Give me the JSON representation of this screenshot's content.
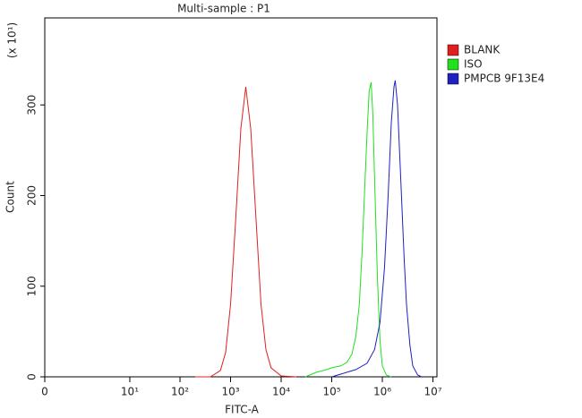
{
  "chart_data": {
    "type": "line",
    "title": "Multi-sample : P1",
    "x_label": "FITC-A",
    "y_label": "Count",
    "y_multiplier": "(x 10¹)",
    "xscale": "biexponential",
    "legend": "right",
    "xlim": [
      0,
      12000000
    ],
    "ylim": [
      0,
      396
    ],
    "xticks": [
      0,
      {
        "value": 10,
        "label": "10¹"
      },
      {
        "value": 100,
        "label": "10²"
      },
      {
        "value": 1000,
        "label": "10³"
      },
      {
        "value": 10000,
        "label": "10⁴"
      },
      {
        "value": 100000,
        "label": "10⁵"
      },
      {
        "value": 1000000,
        "label": "10⁶"
      },
      {
        "value": 10000000,
        "label": "10⁷"
      }
    ],
    "yticks": [
      0,
      100,
      200,
      300
    ],
    "series": [
      {
        "name": "BLANK",
        "color": "#e02020",
        "x": [
          200,
          400,
          630,
          800,
          1000,
          1260,
          1600,
          2000,
          2500,
          3200,
          4000,
          5000,
          6300,
          10000,
          20000
        ],
        "values": [
          0,
          0,
          7,
          27,
          80,
          173,
          274,
          320,
          274,
          173,
          80,
          30,
          10,
          1,
          0
        ]
      },
      {
        "name": "ISO",
        "color": "#20e020",
        "x": [
          30000,
          50000,
          80000,
          100000,
          150000,
          200000,
          250000,
          300000,
          350000,
          400000,
          450000,
          500000,
          550000,
          600000,
          650000,
          700000,
          800000,
          900000,
          1000000,
          1200000,
          1500000
        ],
        "values": [
          0,
          5,
          8,
          10,
          12,
          16,
          25,
          45,
          80,
          140,
          210,
          270,
          315,
          325,
          290,
          220,
          110,
          40,
          12,
          2,
          0
        ]
      },
      {
        "name": "PMPCB 9F13E4",
        "color": "#2020c0",
        "x": [
          100000,
          200000,
          300000,
          500000,
          700000,
          900000,
          1100000,
          1300000,
          1500000,
          1700000,
          1800000,
          2000000,
          2300000,
          2700000,
          3000000,
          3500000,
          4000000,
          5000000,
          6000000
        ],
        "values": [
          0,
          5,
          8,
          15,
          30,
          60,
          120,
          200,
          280,
          320,
          327,
          300,
          220,
          130,
          80,
          35,
          12,
          2,
          0
        ]
      }
    ]
  }
}
